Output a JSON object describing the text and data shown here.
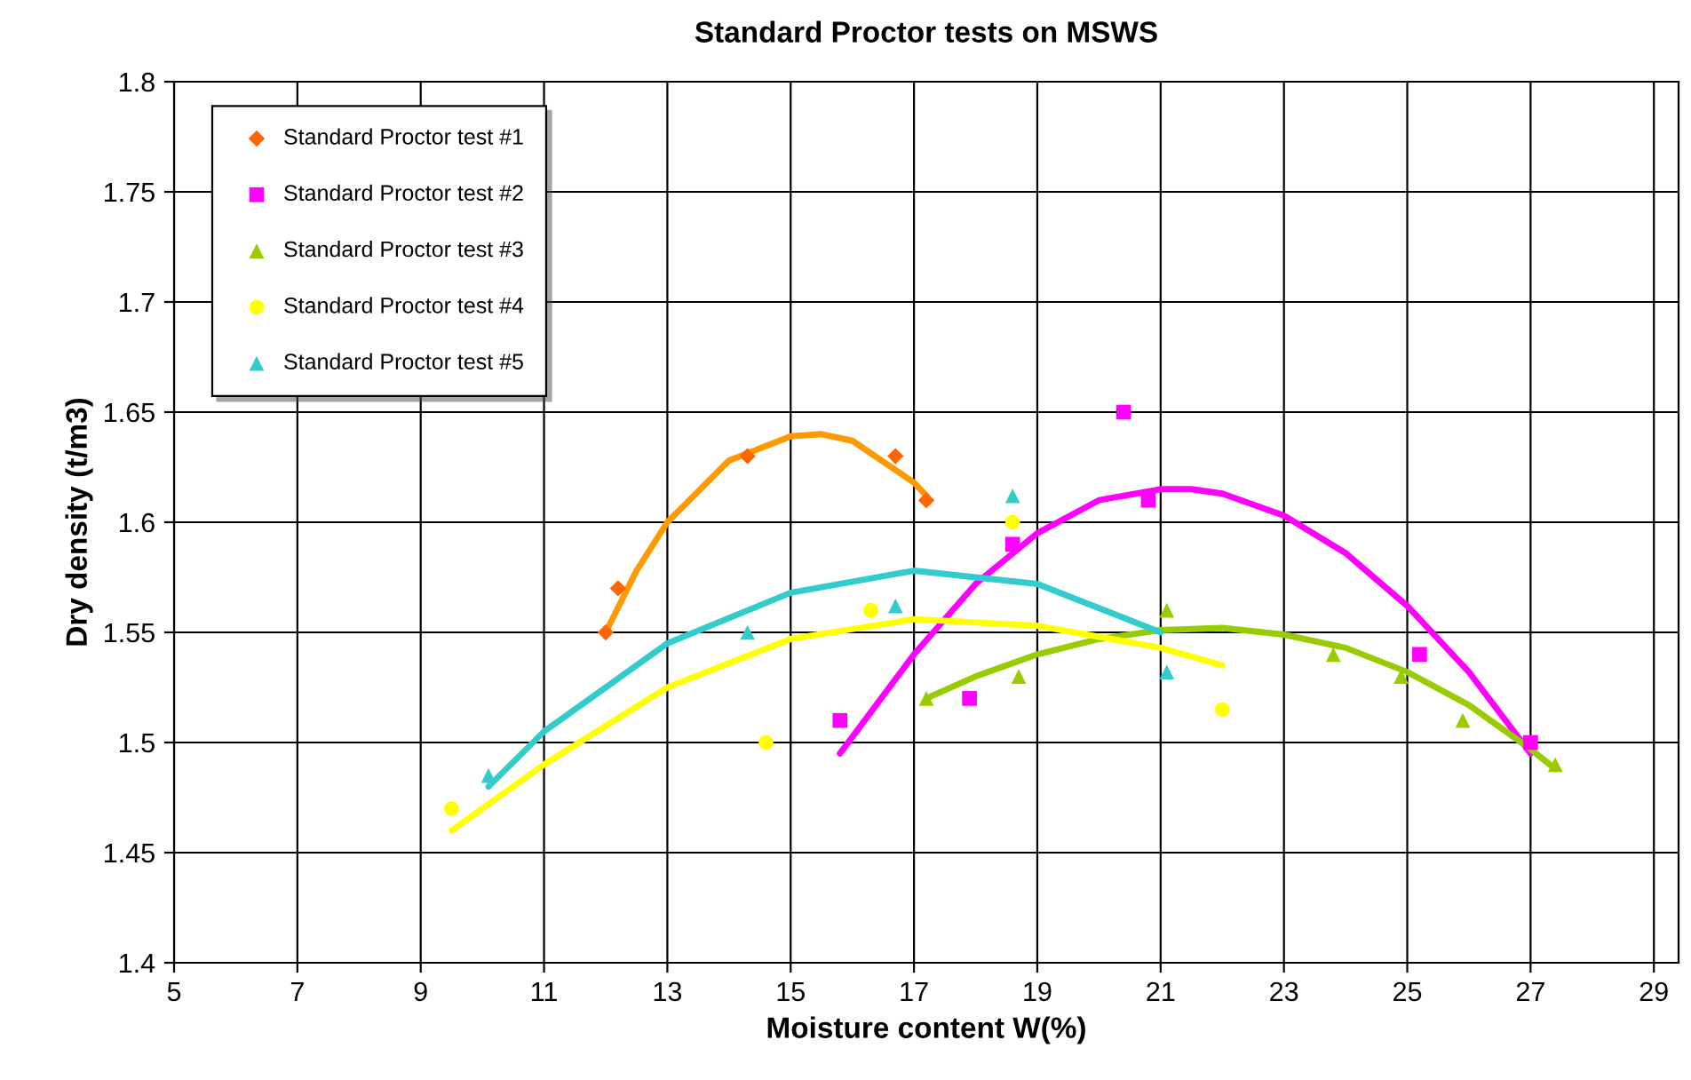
{
  "chart_data": {
    "type": "scatter",
    "title": "Standard Proctor tests on MSWS",
    "xlabel": "Moisture content W(%)",
    "ylabel": "Dry density (t/m3)",
    "xlim": [
      5,
      29.4
    ],
    "xticks": [
      5,
      7,
      9,
      11,
      13,
      15,
      17,
      19,
      21,
      23,
      25,
      27,
      29
    ],
    "ylim": [
      1.4,
      1.8
    ],
    "yticks": [
      1.4,
      1.45,
      1.5,
      1.55,
      1.6,
      1.65,
      1.7,
      1.75,
      1.8
    ],
    "grid": true,
    "legend": "top left",
    "series": [
      {
        "name": "Standard Proctor test #1",
        "marker": "diamond",
        "color": "#ff6600",
        "x": [
          12,
          12.2,
          14.3,
          16.7,
          17.2
        ],
        "values": [
          1.55,
          1.57,
          1.63,
          1.63,
          1.61
        ]
      },
      {
        "name": "Standard Proctor test #2",
        "marker": "square",
        "color": "#ff00ff",
        "x": [
          15.8,
          17.9,
          18.6,
          20.4,
          20.8,
          25.2,
          27
        ],
        "values": [
          1.51,
          1.52,
          1.59,
          1.65,
          1.61,
          1.54,
          1.5
        ]
      },
      {
        "name": "Standard Proctor test #3",
        "marker": "triangle",
        "color": "#99cc00",
        "x": [
          17.2,
          18.7,
          21.1,
          23.8,
          24.9,
          25.9,
          27.4
        ],
        "values": [
          1.52,
          1.53,
          1.56,
          1.54,
          1.53,
          1.51,
          1.49
        ]
      },
      {
        "name": "Standard Proctor test #4",
        "marker": "circle",
        "color": "#ffff00",
        "x": [
          9.5,
          14.6,
          16.3,
          18.6,
          22
        ],
        "values": [
          1.47,
          1.5,
          1.56,
          1.6,
          1.515
        ]
      },
      {
        "name": "Standard Proctor test #5",
        "marker": "triangle",
        "color": "#33cccc",
        "x": [
          10.1,
          14.3,
          16.7,
          18.6,
          21.1
        ],
        "values": [
          1.485,
          1.55,
          1.562,
          1.612,
          1.532
        ]
      },
      {
        "type": "line",
        "color": "#ff9900",
        "x": [
          12,
          12.5,
          13,
          14,
          15,
          15.5,
          16,
          17,
          17.2
        ],
        "values": [
          1.55,
          1.578,
          1.6,
          1.628,
          1.639,
          1.64,
          1.637,
          1.618,
          1.612
        ]
      },
      {
        "type": "line",
        "color": "#ff00ff",
        "x": [
          15.8,
          17,
          18,
          19,
          20,
          21,
          21.5,
          22,
          23,
          24,
          25,
          26,
          27
        ],
        "values": [
          1.495,
          1.54,
          1.572,
          1.595,
          1.61,
          1.615,
          1.615,
          1.613,
          1.603,
          1.586,
          1.562,
          1.532,
          1.495
        ]
      },
      {
        "type": "line",
        "color": "#99cc00",
        "x": [
          17.2,
          18,
          19,
          20,
          21,
          22,
          23,
          24,
          25,
          26,
          27,
          27.4
        ],
        "values": [
          1.52,
          1.53,
          1.54,
          1.547,
          1.551,
          1.552,
          1.549,
          1.543,
          1.532,
          1.517,
          1.497,
          1.488
        ]
      },
      {
        "type": "line",
        "color": "#ffff00",
        "x": [
          9.5,
          11,
          13,
          15,
          17,
          19,
          21,
          22
        ],
        "values": [
          1.46,
          1.49,
          1.525,
          1.547,
          1.556,
          1.553,
          1.543,
          1.535
        ]
      },
      {
        "type": "line",
        "color": "#33cccc",
        "x": [
          10.1,
          11,
          13,
          15,
          17,
          19,
          21
        ],
        "values": [
          1.48,
          1.505,
          1.545,
          1.568,
          1.578,
          1.572,
          1.55
        ]
      }
    ]
  }
}
